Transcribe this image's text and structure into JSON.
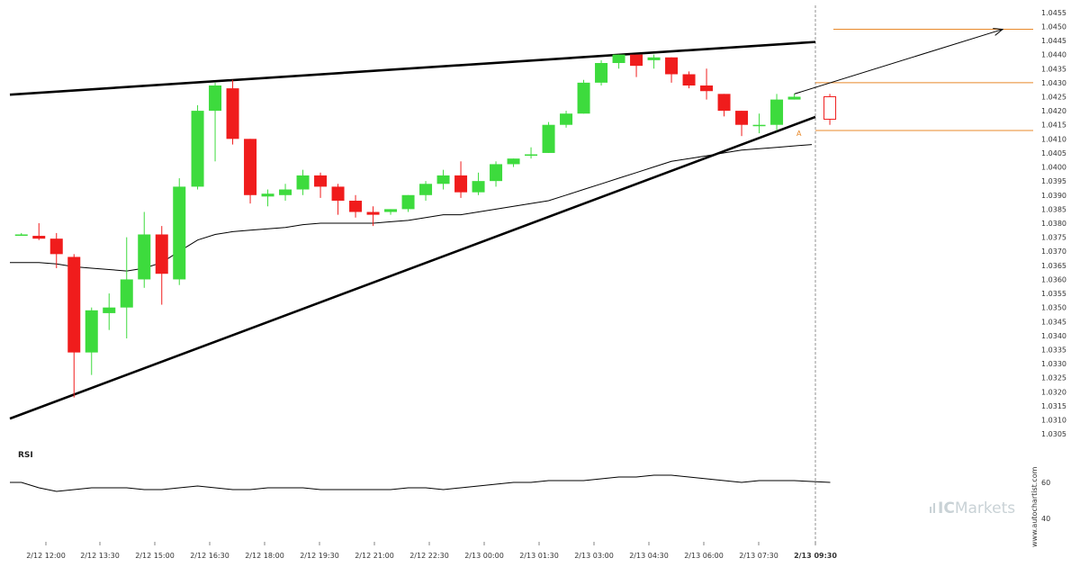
{
  "chart_data": {
    "type": "candlestick",
    "symbol_panel": {
      "y_ticks": [
        "1.0455",
        "1.0450",
        "1.0445",
        "1.0440",
        "1.0435",
        "1.0430",
        "1.0425",
        "1.0420",
        "1.0415",
        "1.0410",
        "1.0405",
        "1.0400",
        "1.0395",
        "1.0390",
        "1.0385",
        "1.0380",
        "1.0375",
        "1.0370",
        "1.0365",
        "1.0360",
        "1.0355",
        "1.0350",
        "1.0345",
        "1.0340",
        "1.0335",
        "1.0330",
        "1.0325",
        "1.0320",
        "1.0315",
        "1.0310",
        "1.0305"
      ],
      "ylim": [
        1.03025,
        1.04575
      ]
    },
    "x_tick_labels": [
      "2/12 12:00",
      "2/12 13:30",
      "2/12 15:00",
      "2/12 16:30",
      "2/12 18:00",
      "2/12 19:30",
      "2/12 21:00",
      "2/12 22:30",
      "2/13 00:00",
      "2/13 01:30",
      "2/13 03:00",
      "2/13 04:30",
      "2/13 06:00",
      "2/13 07:30",
      "2/13 09:30"
    ],
    "candles": [
      {
        "o": 1.0376,
        "h": 1.03765,
        "l": 1.03755,
        "c": 1.0376
      },
      {
        "o": 1.03755,
        "h": 1.038,
        "l": 1.0374,
        "c": 1.03745
      },
      {
        "o": 1.03745,
        "h": 1.03765,
        "l": 1.0364,
        "c": 1.0369
      },
      {
        "o": 1.0368,
        "h": 1.0369,
        "l": 1.0318,
        "c": 1.0334
      },
      {
        "o": 1.0334,
        "h": 1.035,
        "l": 1.0326,
        "c": 1.0349
      },
      {
        "o": 1.0348,
        "h": 1.0355,
        "l": 1.0342,
        "c": 1.035
      },
      {
        "o": 1.035,
        "h": 1.0375,
        "l": 1.0339,
        "c": 1.036
      },
      {
        "o": 1.036,
        "h": 1.0384,
        "l": 1.0357,
        "c": 1.0376
      },
      {
        "o": 1.0376,
        "h": 1.0379,
        "l": 1.0351,
        "c": 1.0362
      },
      {
        "o": 1.036,
        "h": 1.0396,
        "l": 1.0358,
        "c": 1.0393
      },
      {
        "o": 1.0393,
        "h": 1.0422,
        "l": 1.0392,
        "c": 1.042
      },
      {
        "o": 1.042,
        "h": 1.043,
        "l": 1.0402,
        "c": 1.0429
      },
      {
        "o": 1.0428,
        "h": 1.0431,
        "l": 1.0408,
        "c": 1.041
      },
      {
        "o": 1.041,
        "h": 1.041,
        "l": 1.0387,
        "c": 1.039
      },
      {
        "o": 1.03895,
        "h": 1.0392,
        "l": 1.0386,
        "c": 1.03905
      },
      {
        "o": 1.039,
        "h": 1.0394,
        "l": 1.0388,
        "c": 1.0392
      },
      {
        "o": 1.0392,
        "h": 1.0399,
        "l": 1.039,
        "c": 1.0397
      },
      {
        "o": 1.0397,
        "h": 1.0398,
        "l": 1.0389,
        "c": 1.0393
      },
      {
        "o": 1.0393,
        "h": 1.0394,
        "l": 1.0383,
        "c": 1.0388
      },
      {
        "o": 1.0388,
        "h": 1.039,
        "l": 1.0382,
        "c": 1.0384
      },
      {
        "o": 1.0384,
        "h": 1.0386,
        "l": 1.0379,
        "c": 1.0383
      },
      {
        "o": 1.0384,
        "h": 1.0385,
        "l": 1.0383,
        "c": 1.0385
      },
      {
        "o": 1.0385,
        "h": 1.039,
        "l": 1.0384,
        "c": 1.039
      },
      {
        "o": 1.039,
        "h": 1.0395,
        "l": 1.0388,
        "c": 1.0394
      },
      {
        "o": 1.0394,
        "h": 1.0399,
        "l": 1.0392,
        "c": 1.0397
      },
      {
        "o": 1.0397,
        "h": 1.0402,
        "l": 1.0389,
        "c": 1.0391
      },
      {
        "o": 1.0391,
        "h": 1.0398,
        "l": 1.039,
        "c": 1.0395
      },
      {
        "o": 1.0395,
        "h": 1.0402,
        "l": 1.0393,
        "c": 1.0401
      },
      {
        "o": 1.0401,
        "h": 1.0403,
        "l": 1.04,
        "c": 1.0403
      },
      {
        "o": 1.0404,
        "h": 1.0407,
        "l": 1.0403,
        "c": 1.04045
      },
      {
        "o": 1.0405,
        "h": 1.0416,
        "l": 1.0405,
        "c": 1.0415
      },
      {
        "o": 1.0415,
        "h": 1.042,
        "l": 1.0414,
        "c": 1.0419
      },
      {
        "o": 1.0419,
        "h": 1.0431,
        "l": 1.0419,
        "c": 1.043
      },
      {
        "o": 1.043,
        "h": 1.0438,
        "l": 1.0429,
        "c": 1.0437
      },
      {
        "o": 1.0437,
        "h": 1.044,
        "l": 1.0435,
        "c": 1.044
      },
      {
        "o": 1.044,
        "h": 1.044,
        "l": 1.0432,
        "c": 1.0436
      },
      {
        "o": 1.0438,
        "h": 1.044,
        "l": 1.0435,
        "c": 1.0439
      },
      {
        "o": 1.0439,
        "h": 1.0439,
        "l": 1.043,
        "c": 1.0433
      },
      {
        "o": 1.0433,
        "h": 1.0434,
        "l": 1.0428,
        "c": 1.0429
      },
      {
        "o": 1.0429,
        "h": 1.0435,
        "l": 1.0424,
        "c": 1.0427
      },
      {
        "o": 1.0426,
        "h": 1.0426,
        "l": 1.0418,
        "c": 1.042
      },
      {
        "o": 1.042,
        "h": 1.042,
        "l": 1.0411,
        "c": 1.0415
      },
      {
        "o": 1.0415,
        "h": 1.0419,
        "l": 1.0412,
        "c": 1.0415
      },
      {
        "o": 1.0415,
        "h": 1.0426,
        "l": 1.0413,
        "c": 1.0424
      },
      {
        "o": 1.0424,
        "h": 1.0426,
        "l": 1.0424,
        "c": 1.0425
      },
      {
        "o": 1.0425,
        "h": 1.0426,
        "l": 1.0415,
        "c": 1.0417,
        "hollow": true
      }
    ],
    "moving_average": [
      1.0366,
      1.0366,
      1.03655,
      1.03645,
      1.0364,
      1.03635,
      1.0363,
      1.0364,
      1.0366,
      1.037,
      1.0374,
      1.0376,
      1.0377,
      1.03775,
      1.0378,
      1.03785,
      1.03795,
      1.038,
      1.038,
      1.038,
      1.038,
      1.03805,
      1.0381,
      1.0382,
      1.0383,
      1.0383,
      1.0384,
      1.0385,
      1.0386,
      1.0387,
      1.0388,
      1.039,
      1.0392,
      1.0394,
      1.0396,
      1.0398,
      1.04,
      1.0402,
      1.0403,
      1.0404,
      1.0405,
      1.0406,
      1.04065,
      1.0407,
      1.04075,
      1.0408
    ],
    "rsi": {
      "label": "RSI",
      "y_ticks": [
        "60",
        "40"
      ],
      "ylim": [
        28,
        78
      ],
      "values": [
        60,
        57,
        55,
        56,
        57,
        57,
        57,
        56,
        56,
        57,
        58,
        57,
        56,
        56,
        57,
        57,
        57,
        56,
        56,
        56,
        56,
        56,
        57,
        57,
        56,
        57,
        58,
        59,
        60,
        60,
        61,
        61,
        61,
        62,
        63,
        63,
        64,
        64,
        63,
        62,
        61,
        60,
        61,
        61,
        61,
        60
      ]
    },
    "support_line": {
      "x": [
        0,
        44
      ],
      "y": [
        1.0312,
        1.0415
      ]
    },
    "resistance_line": {
      "x": [
        0,
        44
      ],
      "y": [
        1.0426,
        1.0444
      ]
    },
    "forecast_arrow": {
      "x": [
        44,
        54.5
      ],
      "y": [
        1.0426,
        1.0449
      ]
    },
    "horizontal_levels": [
      1.0449,
      1.043,
      1.0413
    ],
    "marker_label": "A",
    "colors": {
      "bull": "#3ddb3d",
      "bear": "#f01c1c",
      "level": "#e8892a",
      "trendline": "#000000",
      "ma": "#000000",
      "rsi": "#000000",
      "hollow_border": "#f01c1c"
    }
  },
  "watermark": {
    "vertical_text": "www.autochartist.com",
    "brand_prefix": "IC",
    "brand_suffix": "Markets"
  }
}
